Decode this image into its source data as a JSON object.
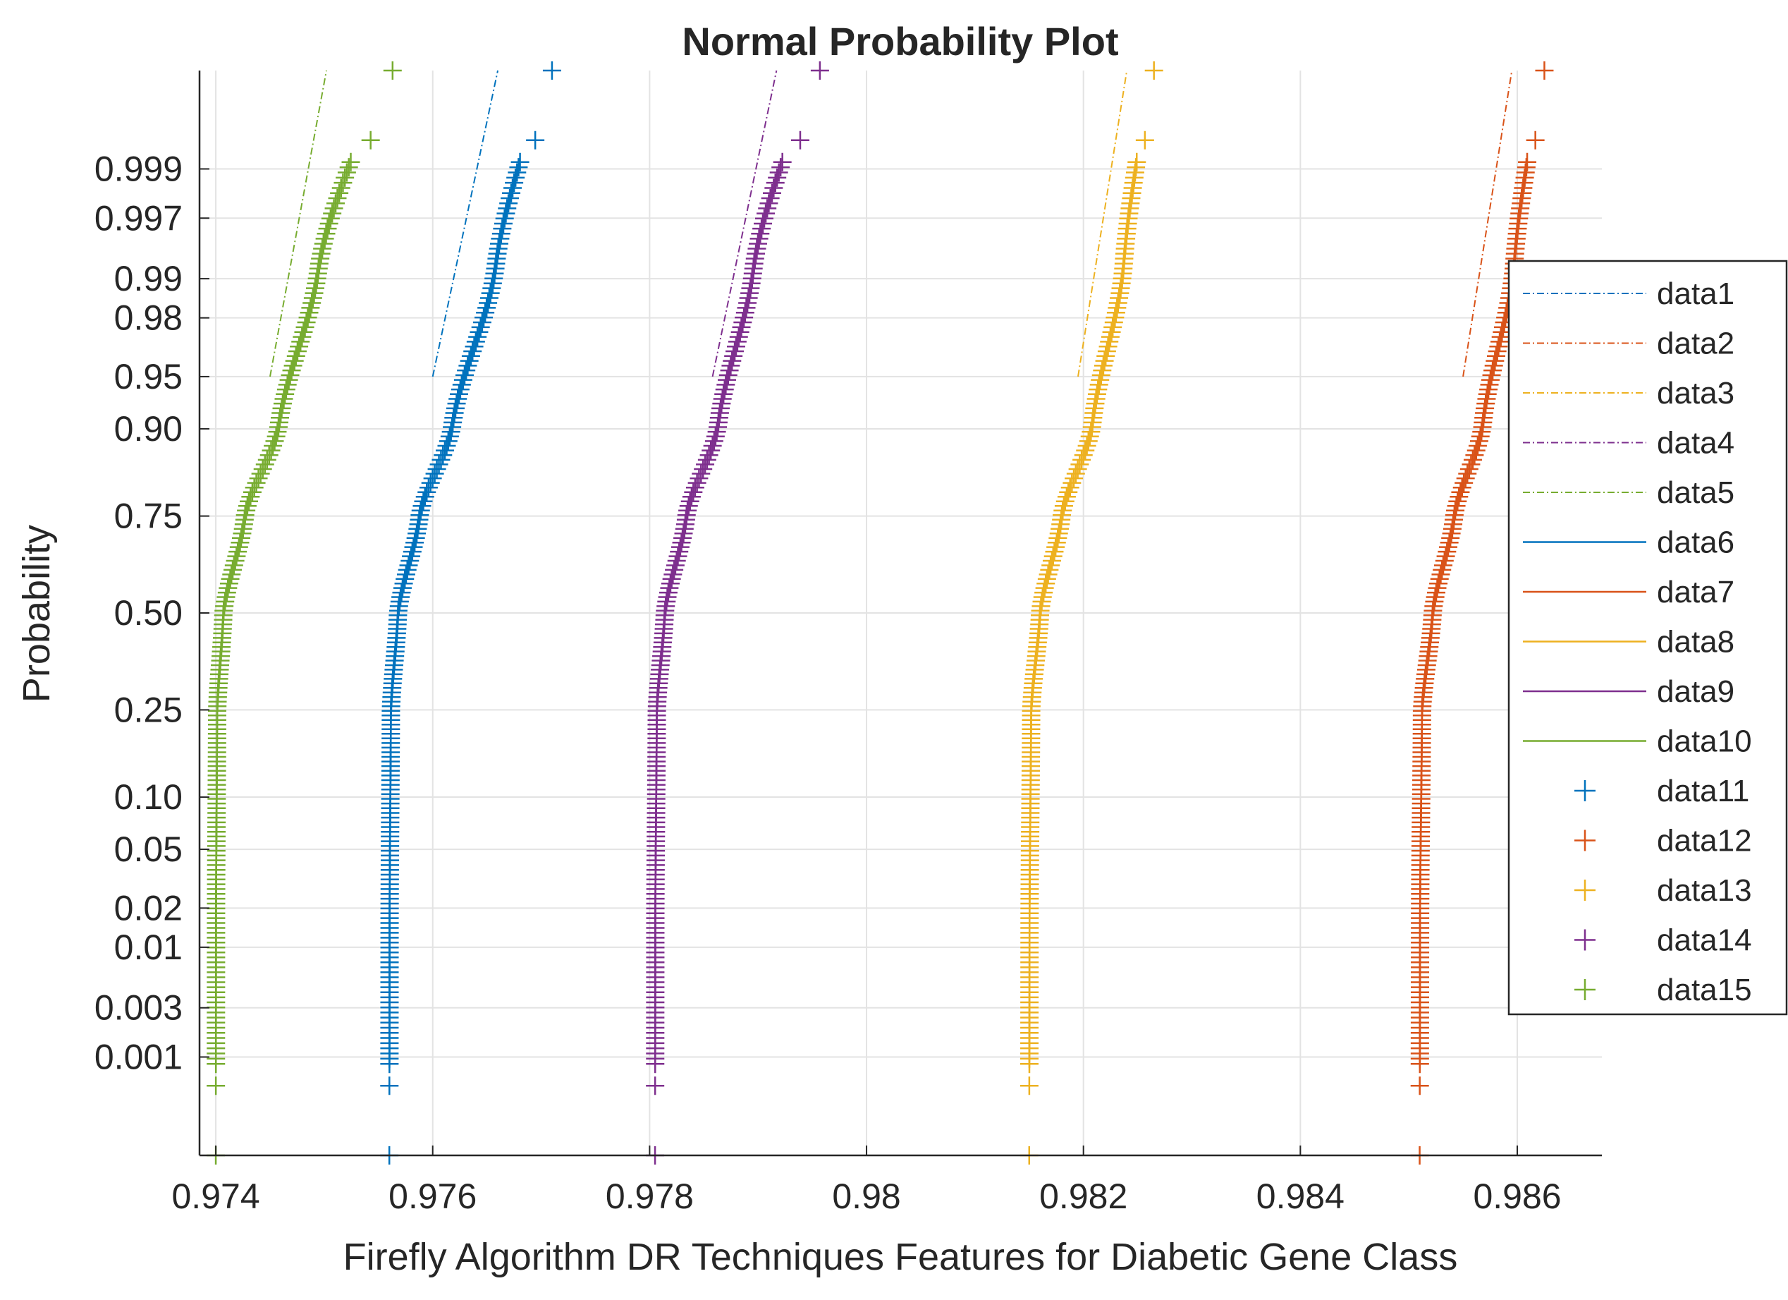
{
  "chart_data": {
    "type": "scatter",
    "subtype": "normal-probability-plot",
    "title": "Normal Probability Plot",
    "xlabel": "Firefly Algorithm DR Techniques Features for Diabetic Gene Class",
    "ylabel": "Probability",
    "xlim": [
      0.97385,
      0.98678
    ],
    "x_ticks": [
      0.974,
      0.976,
      0.978,
      0.98,
      0.982,
      0.984,
      0.986
    ],
    "x_tick_labels": [
      "0.974",
      "0.976",
      "0.978",
      "0.98",
      "0.982",
      "0.984",
      "0.986"
    ],
    "y_scale": "normal-probability",
    "ylim": [
      8e-05,
      0.99992
    ],
    "y_ticks": [
      0.001,
      0.003,
      0.01,
      0.02,
      0.05,
      0.1,
      0.25,
      0.5,
      0.75,
      0.9,
      0.95,
      0.98,
      0.99,
      0.997,
      0.999
    ],
    "y_tick_labels": [
      "0.001",
      "0.003",
      "0.01",
      "0.02",
      "0.05",
      "0.10",
      "0.25",
      "0.50",
      "0.75",
      "0.90",
      "0.95",
      "0.98",
      "0.99",
      "0.997",
      "0.999"
    ],
    "grid": true,
    "legend_position": "right",
    "legend": [
      {
        "name": "data1",
        "style": "dashdot",
        "color": "#0072BD"
      },
      {
        "name": "data2",
        "style": "dashdot",
        "color": "#D95319"
      },
      {
        "name": "data3",
        "style": "dashdot",
        "color": "#EDB120"
      },
      {
        "name": "data4",
        "style": "dashdot",
        "color": "#7E2F8E"
      },
      {
        "name": "data5",
        "style": "dashdot",
        "color": "#77AC30"
      },
      {
        "name": "data6",
        "style": "solid",
        "color": "#0072BD"
      },
      {
        "name": "data7",
        "style": "solid",
        "color": "#D95319"
      },
      {
        "name": "data8",
        "style": "solid",
        "color": "#EDB120"
      },
      {
        "name": "data9",
        "style": "solid",
        "color": "#7E2F8E"
      },
      {
        "name": "data10",
        "style": "solid",
        "color": "#77AC30"
      },
      {
        "name": "data11",
        "style": "plus",
        "color": "#0072BD"
      },
      {
        "name": "data12",
        "style": "plus",
        "color": "#D95319"
      },
      {
        "name": "data13",
        "style": "plus",
        "color": "#EDB120"
      },
      {
        "name": "data14",
        "style": "plus",
        "color": "#7E2F8E"
      },
      {
        "name": "data15",
        "style": "plus",
        "color": "#77AC30"
      }
    ],
    "series": [
      {
        "name": "data15",
        "color": "#77AC30",
        "min_value": 0.974,
        "median": 0.97407,
        "upper_quartile": 0.97427,
        "p90": 0.97458,
        "p99": 0.97495,
        "max_value": 0.97563,
        "reference_line": [
          [
            0.9745,
            0.95
          ],
          [
            0.97502,
            0.99992
          ]
        ]
      },
      {
        "name": "data11",
        "color": "#0072BD",
        "min_value": 0.9756,
        "median": 0.97568,
        "upper_quartile": 0.97588,
        "p90": 0.97618,
        "p99": 0.97658,
        "max_value": 0.9771,
        "reference_line": [
          [
            0.976,
            0.95
          ],
          [
            0.9766,
            0.99992
          ]
        ]
      },
      {
        "name": "data14",
        "color": "#7E2F8E",
        "min_value": 0.97805,
        "median": 0.97814,
        "upper_quartile": 0.97834,
        "p90": 0.97863,
        "p99": 0.97896,
        "max_value": 0.97957,
        "reference_line": [
          [
            0.97858,
            0.95
          ],
          [
            0.97917,
            0.99992
          ]
        ]
      },
      {
        "name": "data13",
        "color": "#EDB120",
        "min_value": 0.9815,
        "median": 0.9816,
        "upper_quartile": 0.9818,
        "p90": 0.98208,
        "p99": 0.98237,
        "max_value": 0.98265,
        "reference_line": [
          [
            0.98195,
            0.95
          ],
          [
            0.9824,
            0.99992
          ]
        ]
      },
      {
        "name": "data12",
        "color": "#D95319",
        "min_value": 0.9851,
        "median": 0.98522,
        "upper_quartile": 0.98542,
        "p90": 0.98568,
        "p99": 0.98597,
        "max_value": 0.98625,
        "reference_line": [
          [
            0.9855,
            0.95
          ],
          [
            0.98595,
            0.99992
          ]
        ]
      }
    ]
  }
}
